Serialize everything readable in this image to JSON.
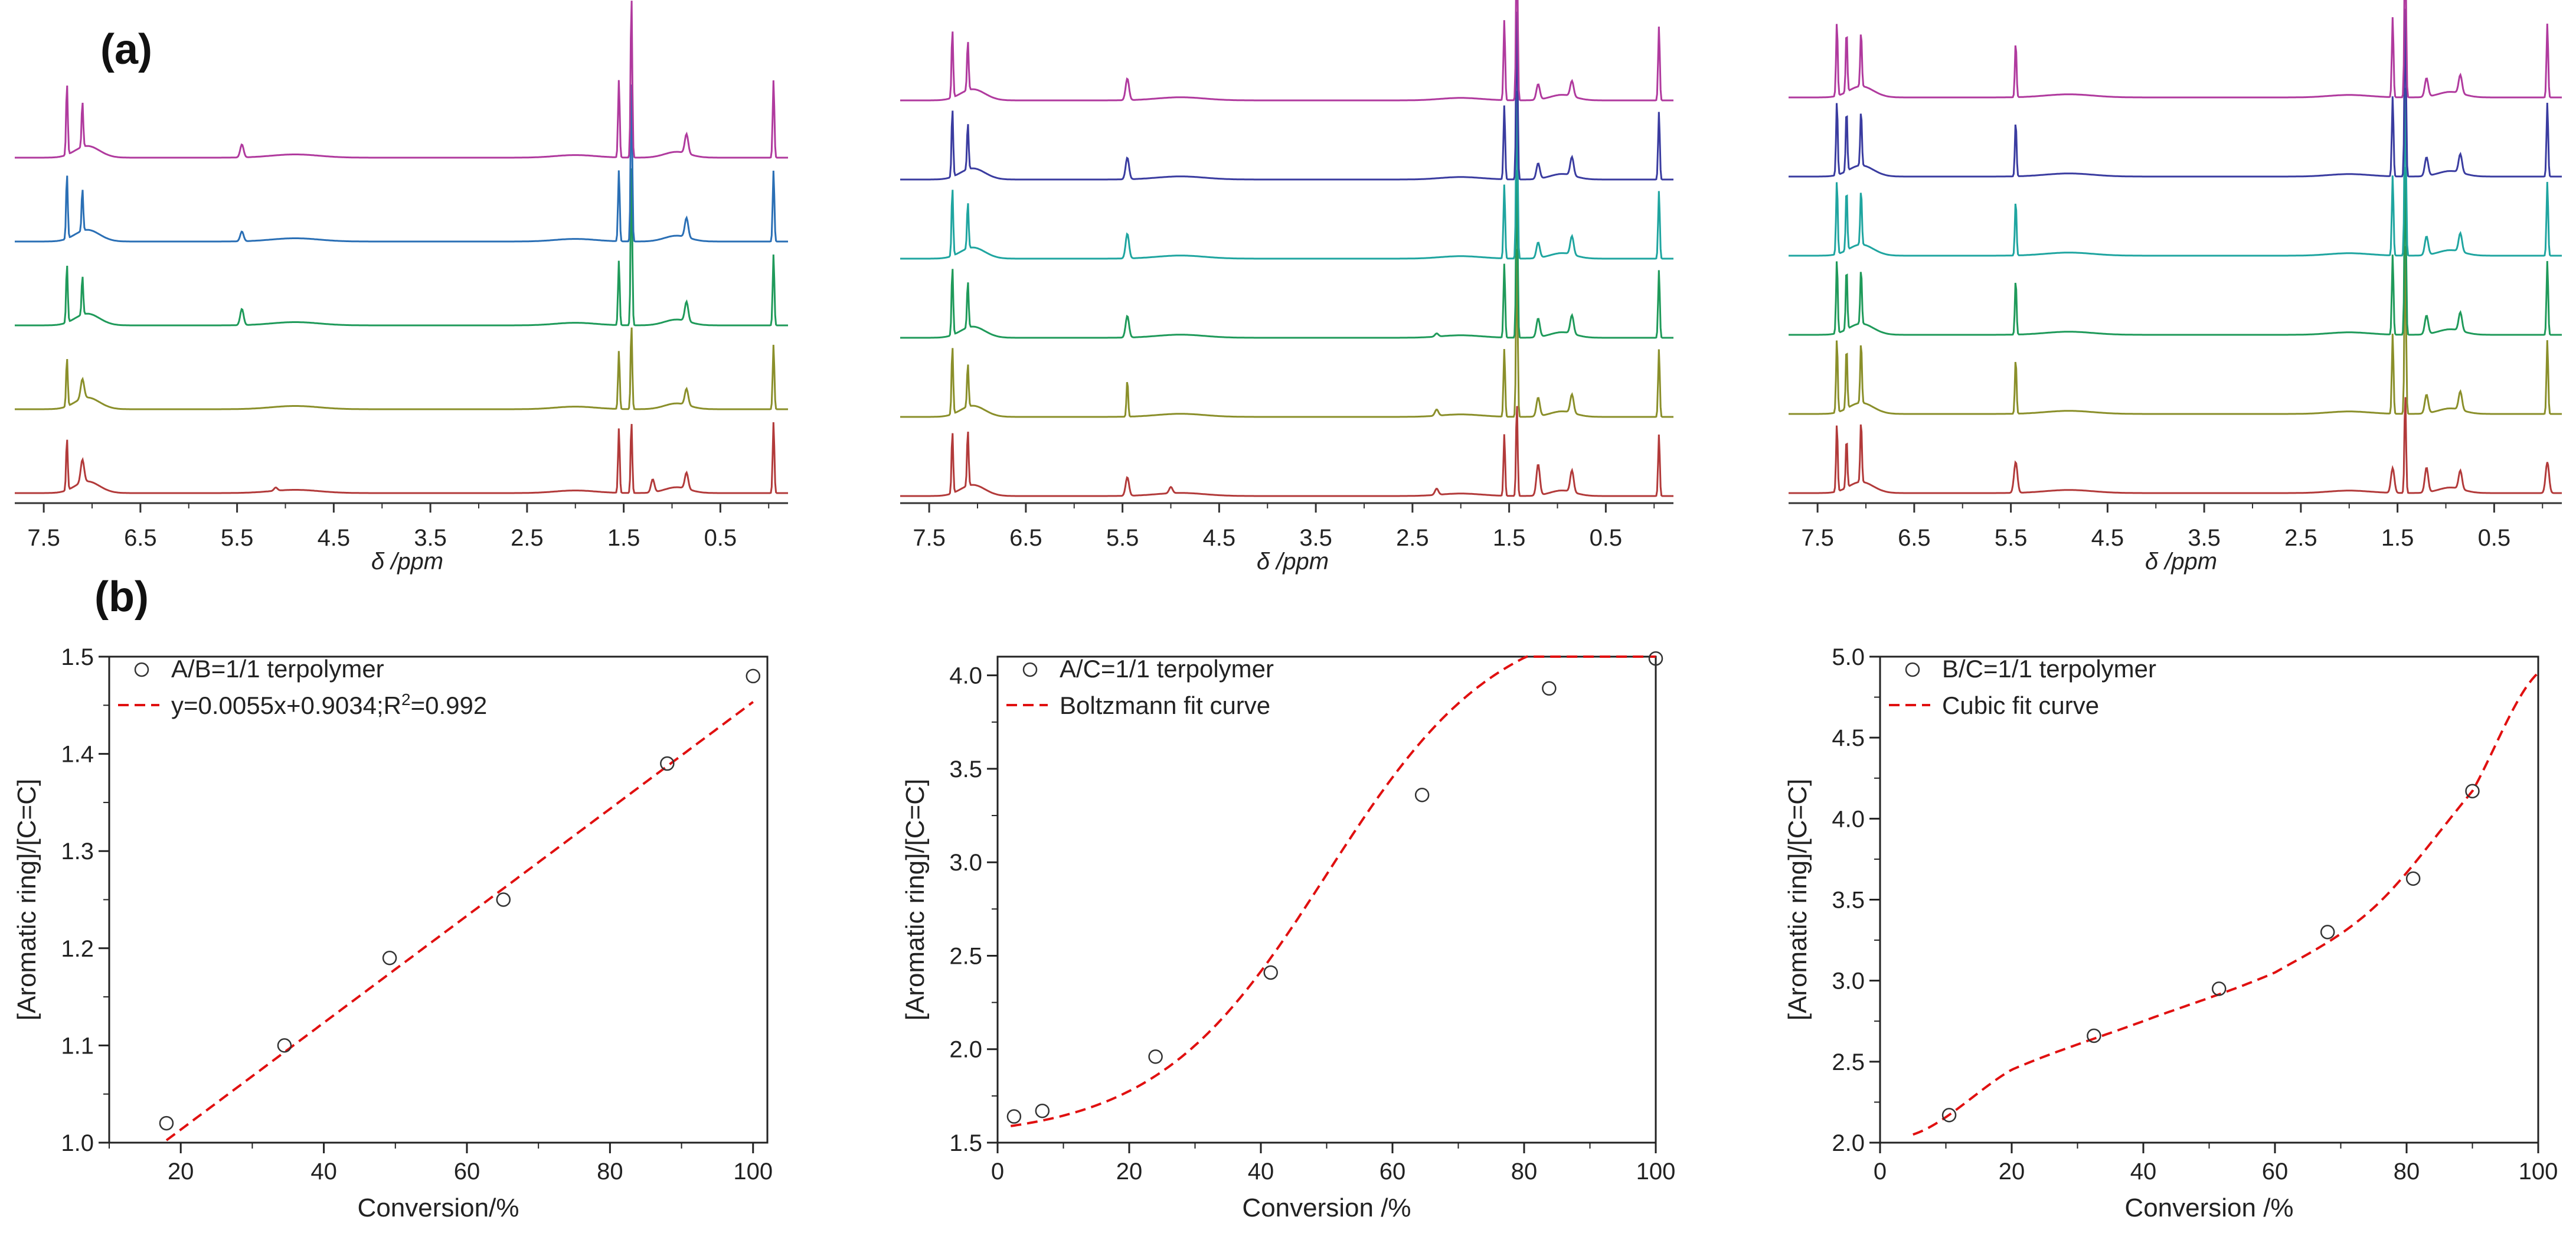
{
  "panel_labels": [
    "(a)",
    "(b)"
  ],
  "chart_data": [
    {
      "type": "line",
      "subtype": "nmr-spectra-stack",
      "xlabel": "δ /ppm",
      "xlim": [
        7.8,
        -0.2
      ],
      "x_ticks": [
        "7.5",
        "6.5",
        "5.5",
        "4.5",
        "3.5",
        "2.5",
        "1.5",
        "0.5"
      ],
      "x_tick_values": [
        7.5,
        6.5,
        5.5,
        4.5,
        3.5,
        2.5,
        1.5,
        0.5
      ],
      "series": [
        {
          "name": "trace-1",
          "color": "#b23a3a",
          "peaks": [
            [
              7.26,
              0.8
            ],
            [
              7.1,
              0.35
            ],
            [
              5.1,
              0.05
            ],
            [
              1.55,
              1.0
            ],
            [
              1.42,
              1.1
            ],
            [
              1.2,
              0.2
            ],
            [
              0.85,
              0.25
            ],
            [
              -0.05,
              1.1
            ]
          ]
        },
        {
          "name": "trace-2",
          "color": "#8a8f2a",
          "peaks": [
            [
              7.26,
              0.75
            ],
            [
              7.1,
              0.3
            ],
            [
              1.55,
              0.9
            ],
            [
              1.42,
              1.3
            ],
            [
              0.85,
              0.25
            ],
            [
              -0.05,
              1.0
            ]
          ]
        },
        {
          "name": "trace-3",
          "color": "#1f9a5a",
          "peaks": [
            [
              7.26,
              0.9
            ],
            [
              7.1,
              0.6
            ],
            [
              5.45,
              0.25
            ],
            [
              1.55,
              1.0
            ],
            [
              1.42,
              2.5
            ],
            [
              0.85,
              0.3
            ],
            [
              -0.05,
              1.1
            ]
          ]
        },
        {
          "name": "trace-4",
          "color": "#2a6fb5",
          "peaks": [
            [
              7.26,
              1.0
            ],
            [
              7.1,
              0.65
            ],
            [
              5.45,
              0.15
            ],
            [
              1.55,
              1.1
            ],
            [
              1.42,
              2.5
            ],
            [
              0.85,
              0.3
            ],
            [
              -0.05,
              1.1
            ]
          ]
        },
        {
          "name": "trace-5",
          "color": "#b03a9e",
          "peaks": [
            [
              7.26,
              1.1
            ],
            [
              7.1,
              0.7
            ],
            [
              5.45,
              0.2
            ],
            [
              1.55,
              1.2
            ],
            [
              1.42,
              2.5
            ],
            [
              0.85,
              0.3
            ],
            [
              -0.05,
              1.2
            ]
          ]
        }
      ]
    },
    {
      "type": "line",
      "subtype": "nmr-spectra-stack",
      "xlabel": "δ /ppm",
      "xlim": [
        7.8,
        -0.2
      ],
      "x_ticks": [
        "7.5",
        "6.5",
        "5.5",
        "4.5",
        "3.5",
        "2.5",
        "1.5",
        "0.5"
      ],
      "x_tick_values": [
        7.5,
        6.5,
        5.5,
        4.5,
        3.5,
        2.5,
        1.5,
        0.5
      ],
      "series": [
        {
          "name": "trace-1",
          "color": "#b23a3a",
          "peaks": [
            [
              7.26,
              1.0
            ],
            [
              7.1,
              0.9
            ],
            [
              5.45,
              0.3
            ],
            [
              5.0,
              0.1
            ],
            [
              2.25,
              0.1
            ],
            [
              1.55,
              1.0
            ],
            [
              1.42,
              1.5
            ],
            [
              1.2,
              0.5
            ],
            [
              0.85,
              0.35
            ],
            [
              -0.05,
              1.0
            ]
          ]
        },
        {
          "name": "trace-2",
          "color": "#8a8f2a",
          "peaks": [
            [
              7.26,
              1.1
            ],
            [
              7.1,
              0.7
            ],
            [
              5.45,
              0.6
            ],
            [
              2.25,
              0.1
            ],
            [
              1.55,
              1.1
            ],
            [
              1.42,
              2.8
            ],
            [
              1.2,
              0.3
            ],
            [
              0.85,
              0.3
            ],
            [
              -0.05,
              1.1
            ]
          ]
        },
        {
          "name": "trace-3",
          "color": "#1f9a5a",
          "peaks": [
            [
              7.26,
              1.1
            ],
            [
              7.1,
              0.75
            ],
            [
              5.45,
              0.35
            ],
            [
              2.25,
              0.05
            ],
            [
              1.55,
              1.2
            ],
            [
              1.42,
              2.8
            ],
            [
              1.2,
              0.3
            ],
            [
              0.85,
              0.3
            ],
            [
              -0.05,
              1.1
            ]
          ]
        },
        {
          "name": "trace-4",
          "color": "#1fa5a0",
          "peaks": [
            [
              7.26,
              1.1
            ],
            [
              7.1,
              0.75
            ],
            [
              5.45,
              0.4
            ],
            [
              1.55,
              1.2
            ],
            [
              1.42,
              2.8
            ],
            [
              1.2,
              0.25
            ],
            [
              0.85,
              0.3
            ],
            [
              -0.05,
              1.1
            ]
          ]
        },
        {
          "name": "trace-5",
          "color": "#3a3ca0",
          "peaks": [
            [
              7.26,
              1.1
            ],
            [
              7.1,
              0.75
            ],
            [
              5.45,
              0.35
            ],
            [
              1.55,
              1.2
            ],
            [
              1.42,
              2.8
            ],
            [
              1.2,
              0.25
            ],
            [
              0.85,
              0.3
            ],
            [
              -0.05,
              1.1
            ]
          ]
        },
        {
          "name": "trace-6",
          "color": "#b03a9e",
          "peaks": [
            [
              7.26,
              1.1
            ],
            [
              7.1,
              0.8
            ],
            [
              5.45,
              0.35
            ],
            [
              1.55,
              1.3
            ],
            [
              1.42,
              2.8
            ],
            [
              1.2,
              0.25
            ],
            [
              0.85,
              0.25
            ],
            [
              -0.05,
              1.2
            ]
          ]
        }
      ]
    },
    {
      "type": "line",
      "subtype": "nmr-spectra-stack",
      "xlabel": "δ /ppm",
      "xlim": [
        7.8,
        -0.2
      ],
      "x_ticks": [
        "7.5",
        "6.5",
        "5.5",
        "4.5",
        "3.5",
        "2.5",
        "1.5",
        "0.5"
      ],
      "x_tick_values": [
        7.5,
        6.5,
        5.5,
        4.5,
        3.5,
        2.5,
        1.5,
        0.5
      ],
      "series": [
        {
          "name": "trace-1",
          "color": "#b23a3a",
          "peaks": [
            [
              7.3,
              1.1
            ],
            [
              7.2,
              0.8
            ],
            [
              7.05,
              1.0
            ],
            [
              5.45,
              0.5
            ],
            [
              1.55,
              0.4
            ],
            [
              1.42,
              1.6
            ],
            [
              1.2,
              0.4
            ],
            [
              0.85,
              0.3
            ],
            [
              -0.05,
              0.5
            ]
          ]
        },
        {
          "name": "trace-2",
          "color": "#8a8f2a",
          "peaks": [
            [
              7.3,
              1.2
            ],
            [
              7.2,
              1.0
            ],
            [
              7.05,
              1.0
            ],
            [
              5.45,
              0.9
            ],
            [
              1.55,
              1.3
            ],
            [
              1.42,
              2.8
            ],
            [
              1.2,
              0.3
            ],
            [
              0.85,
              0.3
            ],
            [
              -0.05,
              1.2
            ]
          ]
        },
        {
          "name": "trace-3",
          "color": "#1f9a5a",
          "peaks": [
            [
              7.3,
              1.2
            ],
            [
              7.2,
              1.0
            ],
            [
              7.05,
              0.9
            ],
            [
              5.45,
              0.9
            ],
            [
              1.55,
              1.3
            ],
            [
              1.42,
              2.8
            ],
            [
              1.2,
              0.3
            ],
            [
              0.85,
              0.3
            ],
            [
              -0.05,
              1.2
            ]
          ]
        },
        {
          "name": "trace-4",
          "color": "#1fa5a0",
          "peaks": [
            [
              7.3,
              1.2
            ],
            [
              7.2,
              1.0
            ],
            [
              7.05,
              0.9
            ],
            [
              5.45,
              0.9
            ],
            [
              1.55,
              1.3
            ],
            [
              1.42,
              2.8
            ],
            [
              1.2,
              0.3
            ],
            [
              0.85,
              0.3
            ],
            [
              -0.05,
              1.2
            ]
          ]
        },
        {
          "name": "trace-5",
          "color": "#3a3ca0",
          "peaks": [
            [
              7.3,
              1.2
            ],
            [
              7.2,
              1.0
            ],
            [
              7.05,
              0.9
            ],
            [
              5.45,
              0.9
            ],
            [
              1.55,
              1.3
            ],
            [
              1.42,
              2.8
            ],
            [
              1.2,
              0.3
            ],
            [
              0.85,
              0.3
            ],
            [
              -0.05,
              1.2
            ]
          ]
        },
        {
          "name": "trace-6",
          "color": "#b03a9e",
          "peaks": [
            [
              7.3,
              1.2
            ],
            [
              7.2,
              1.0
            ],
            [
              7.05,
              0.9
            ],
            [
              5.45,
              0.9
            ],
            [
              1.55,
              1.3
            ],
            [
              1.42,
              2.8
            ],
            [
              1.2,
              0.3
            ],
            [
              0.85,
              0.3
            ],
            [
              -0.05,
              1.2
            ]
          ]
        }
      ]
    },
    {
      "type": "scatter",
      "xlabel": "Conversion/%",
      "ylabel": "[Aromatic ring]/[C=C]",
      "xlim": [
        10,
        102
      ],
      "ylim": [
        1.0,
        1.5
      ],
      "x_ticks": [
        "20",
        "40",
        "60",
        "80",
        "100"
      ],
      "x_tick_values": [
        20,
        40,
        60,
        80,
        100
      ],
      "y_ticks": [
        "1.0",
        "1.1",
        "1.2",
        "1.3",
        "1.4",
        "1.5"
      ],
      "y_tick_values": [
        1.0,
        1.1,
        1.2,
        1.3,
        1.4,
        1.5
      ],
      "points": {
        "name": "A/B=1/1 terpolymer",
        "x": [
          18,
          34.5,
          49.2,
          65.1,
          88,
          100
        ],
        "y": [
          1.02,
          1.1,
          1.19,
          1.25,
          1.39,
          1.48
        ]
      },
      "fit": {
        "name": "y=0.0055x+0.9034;R",
        "name_sup": "2",
        "name_tail": "=0.992",
        "kind": "linear",
        "slope": 0.0055,
        "intercept": 0.9034,
        "x_range": [
          18,
          100
        ],
        "color": "#e01010"
      },
      "legend": "top-left"
    },
    {
      "type": "scatter",
      "xlabel": "Conversion /%",
      "ylabel": "[Aromatic ring]/[C=C]",
      "xlim": [
        0,
        100
      ],
      "ylim": [
        1.5,
        4.1
      ],
      "x_ticks": [
        "0",
        "20",
        "40",
        "60",
        "80",
        "100"
      ],
      "x_tick_values": [
        0,
        20,
        40,
        60,
        80,
        100
      ],
      "y_ticks": [
        "1.5",
        "2.0",
        "2.5",
        "3.0",
        "3.5",
        "4.0"
      ],
      "y_tick_values": [
        1.5,
        2.0,
        2.5,
        3.0,
        3.5,
        4.0
      ],
      "points": {
        "name": "A/C=1/1 terpolymer",
        "x": [
          2.5,
          6.8,
          24,
          41.5,
          64.5,
          83.8,
          100
        ],
        "y": [
          1.64,
          1.67,
          1.96,
          2.41,
          3.36,
          3.93,
          4.09
        ]
      },
      "fit": {
        "name": "Boltzmann fit curve",
        "kind": "boltzmann",
        "A1": 1.52,
        "A2": 4.35,
        "x0": 50,
        "dx": 13,
        "x_range": [
          2,
          100
        ],
        "color": "#e01010"
      },
      "legend": "top-left"
    },
    {
      "type": "scatter",
      "xlabel": "Conversion /%",
      "ylabel": "[Aromatic ring]/[C=C]",
      "xlim": [
        0,
        100
      ],
      "ylim": [
        2.0,
        5.0
      ],
      "x_ticks": [
        "0",
        "20",
        "40",
        "60",
        "80",
        "100"
      ],
      "x_tick_values": [
        0,
        20,
        40,
        60,
        80,
        100
      ],
      "y_ticks": [
        "2.0",
        "2.5",
        "3.0",
        "3.5",
        "4.0",
        "4.5",
        "5.0"
      ],
      "y_tick_values": [
        2.0,
        2.5,
        3.0,
        3.5,
        4.0,
        4.5,
        5.0
      ],
      "points": {
        "name": "B/C=1/1 terpolymer",
        "x": [
          10.5,
          32.5,
          51.5,
          68,
          81,
          90
        ],
        "y": [
          2.17,
          2.66,
          2.95,
          3.3,
          3.63,
          4.17
        ]
      },
      "fit": {
        "name": "Cubic fit curve",
        "kind": "cubic",
        "knots_x": [
          5,
          20,
          40,
          60,
          75,
          90,
          100
        ],
        "knots_y": [
          2.05,
          2.45,
          2.75,
          3.05,
          3.45,
          4.17,
          4.9
        ],
        "x_range": [
          5,
          100
        ],
        "color": "#e01010"
      },
      "legend": "top-left"
    }
  ]
}
